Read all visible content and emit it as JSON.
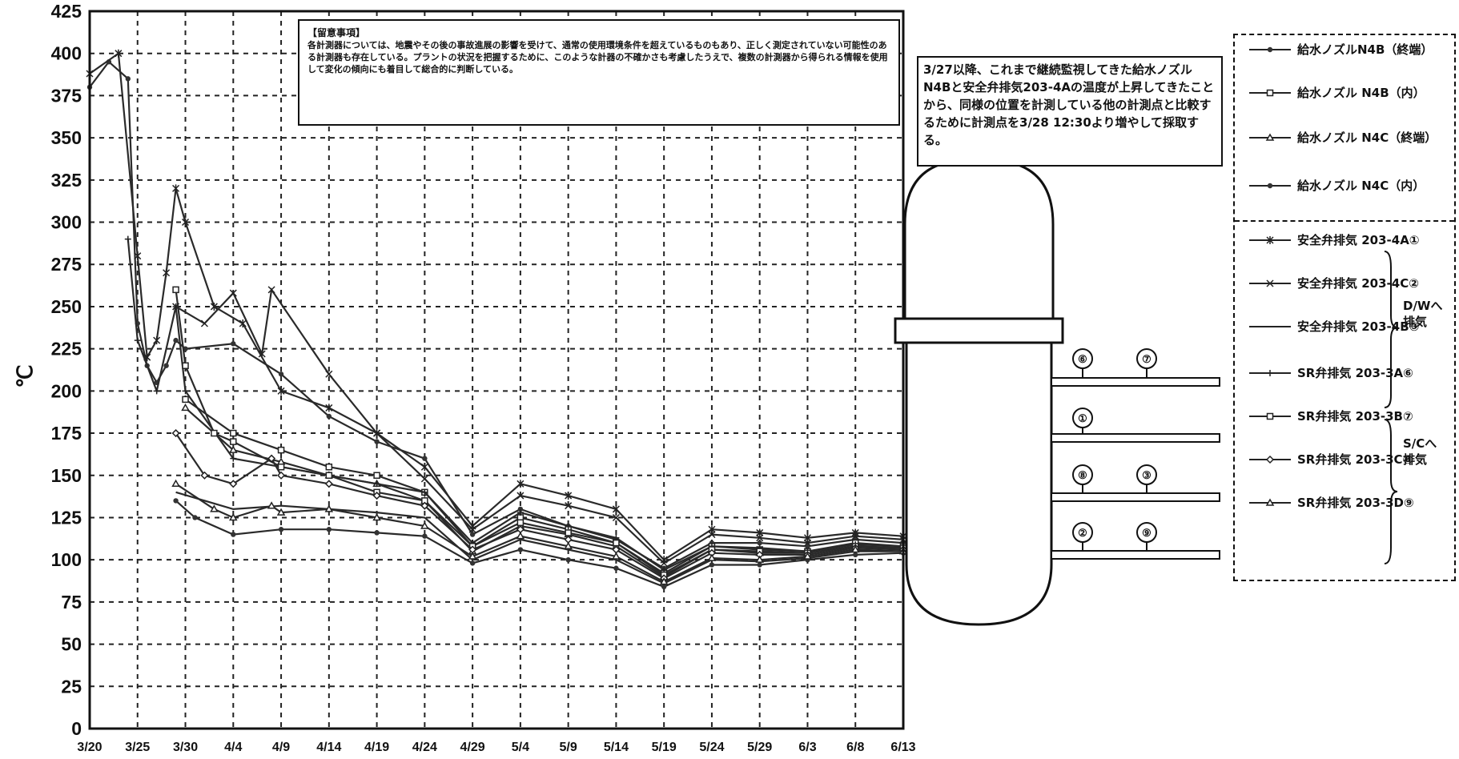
{
  "chart_data": {
    "type": "line",
    "ylabel": "℃",
    "ylim": [
      0,
      425
    ],
    "yticks": [
      "0",
      "25",
      "50",
      "75",
      "100",
      "125",
      "150",
      "175",
      "200",
      "225",
      "250",
      "275",
      "300",
      "325",
      "350",
      "375",
      "400",
      "425"
    ],
    "xticks": [
      "3/20",
      "3/25",
      "3/30",
      "4/4",
      "4/9",
      "4/14",
      "4/19",
      "4/24",
      "4/29",
      "5/4",
      "5/9",
      "5/14",
      "5/19",
      "5/24",
      "5/29",
      "6/3",
      "6/8",
      "6/13"
    ],
    "x_start_month": 3,
    "x_start_day": 20,
    "grid": true,
    "note": {
      "title": "【留意事項】",
      "body": "各計測器については、地震やその後の事故進展の影響を受けて、通常の使用環境条件を超えているものもあり、正しく測定されていない可能性のある計測器も存在している。プラントの状況を把握するために、このような計器の不確かさも考慮したうえで、複数の計測器から得られる情報を使用して変化の傾向にも着目して総合的に判断している。"
    },
    "callout": "3/27以降、これまで継続監視してきた給水ノズルN4Bと安全弁排気203-4Aの温度が上昇してきたことから、同様の位置を計測している他の計測点と比較するために計測点を3/28 12:30より増やして採取する。",
    "series": [
      {
        "name": "給水ノズルN4B（終端）",
        "marker": "dot",
        "points": [
          [
            3,
            20,
            380
          ],
          [
            3,
            22,
            395
          ],
          [
            3,
            24,
            385
          ],
          [
            3,
            25,
            240
          ],
          [
            3,
            26,
            215
          ],
          [
            3,
            27,
            205
          ],
          [
            3,
            28,
            215
          ],
          [
            3,
            29,
            230
          ],
          [
            3,
            30,
            225
          ],
          [
            4,
            4,
            228
          ],
          [
            4,
            9,
            210
          ],
          [
            4,
            14,
            185
          ],
          [
            4,
            19,
            170
          ],
          [
            4,
            24,
            160
          ],
          [
            4,
            29,
            115
          ],
          [
            5,
            4,
            130
          ],
          [
            5,
            9,
            120
          ],
          [
            5,
            14,
            112
          ],
          [
            5,
            19,
            95
          ],
          [
            5,
            24,
            110
          ],
          [
            5,
            29,
            110
          ],
          [
            6,
            3,
            108
          ],
          [
            6,
            8,
            112
          ],
          [
            6,
            13,
            110
          ]
        ]
      },
      {
        "name": "給水ノズル N4B（内）",
        "marker": "square",
        "points": [
          [
            3,
            30,
            195
          ],
          [
            4,
            4,
            175
          ],
          [
            4,
            9,
            165
          ],
          [
            4,
            14,
            155
          ],
          [
            4,
            19,
            150
          ],
          [
            4,
            24,
            140
          ],
          [
            4,
            29,
            108
          ],
          [
            5,
            4,
            125
          ],
          [
            5,
            9,
            118
          ],
          [
            5,
            14,
            110
          ],
          [
            5,
            19,
            92
          ],
          [
            5,
            24,
            108
          ],
          [
            5,
            29,
            106
          ],
          [
            6,
            3,
            105
          ],
          [
            6,
            8,
            110
          ],
          [
            6,
            13,
            108
          ]
        ]
      },
      {
        "name": "給水ノズル N4C（終端）",
        "marker": "triangle",
        "points": [
          [
            3,
            30,
            190
          ],
          [
            4,
            4,
            165
          ],
          [
            4,
            9,
            158
          ],
          [
            4,
            14,
            150
          ],
          [
            4,
            19,
            145
          ],
          [
            4,
            24,
            135
          ],
          [
            4,
            29,
            105
          ],
          [
            5,
            4,
            120
          ],
          [
            5,
            9,
            115
          ],
          [
            5,
            14,
            108
          ],
          [
            5,
            19,
            90
          ],
          [
            5,
            24,
            106
          ],
          [
            5,
            29,
            104
          ],
          [
            6,
            3,
            104
          ],
          [
            6,
            8,
            108
          ],
          [
            6,
            13,
            107
          ]
        ]
      },
      {
        "name": "給水ノズル N4C（内）",
        "marker": "dot",
        "points": [
          [
            3,
            29,
            135
          ],
          [
            3,
            31,
            125
          ],
          [
            4,
            4,
            115
          ],
          [
            4,
            9,
            118
          ],
          [
            4,
            14,
            118
          ],
          [
            4,
            19,
            116
          ],
          [
            4,
            24,
            114
          ],
          [
            4,
            29,
            98
          ],
          [
            5,
            4,
            106
          ],
          [
            5,
            9,
            100
          ],
          [
            5,
            14,
            95
          ],
          [
            5,
            19,
            84
          ],
          [
            5,
            24,
            97
          ],
          [
            5,
            29,
            97
          ],
          [
            6,
            3,
            100
          ],
          [
            6,
            8,
            103
          ],
          [
            6,
            13,
            104
          ]
        ]
      },
      {
        "name": "安全弁排気 203-4A①",
        "marker": "asterisk",
        "points": [
          [
            3,
            20,
            388
          ],
          [
            3,
            23,
            400
          ],
          [
            3,
            25,
            280
          ],
          [
            3,
            26,
            220
          ],
          [
            3,
            27,
            230
          ],
          [
            3,
            28,
            270
          ],
          [
            3,
            29,
            320
          ],
          [
            3,
            30,
            300
          ],
          [
            4,
            2,
            250
          ],
          [
            4,
            5,
            240
          ],
          [
            4,
            9,
            200
          ],
          [
            4,
            14,
            190
          ],
          [
            4,
            19,
            175
          ],
          [
            4,
            24,
            155
          ],
          [
            4,
            29,
            120
          ],
          [
            5,
            4,
            145
          ],
          [
            5,
            9,
            138
          ],
          [
            5,
            14,
            130
          ],
          [
            5,
            19,
            100
          ],
          [
            5,
            24,
            118
          ],
          [
            5,
            29,
            116
          ],
          [
            6,
            3,
            113
          ],
          [
            6,
            8,
            116
          ],
          [
            6,
            13,
            114
          ]
        ]
      },
      {
        "name": "安全弁排気 203-4C②",
        "marker": "x",
        "points": [
          [
            3,
            29,
            250
          ],
          [
            4,
            1,
            240
          ],
          [
            4,
            4,
            258
          ],
          [
            4,
            7,
            222
          ],
          [
            4,
            8,
            260
          ],
          [
            4,
            14,
            210
          ],
          [
            4,
            19,
            175
          ],
          [
            4,
            24,
            148
          ],
          [
            4,
            29,
            118
          ],
          [
            5,
            4,
            138
          ],
          [
            5,
            9,
            132
          ],
          [
            5,
            14,
            125
          ],
          [
            5,
            19,
            98
          ],
          [
            5,
            24,
            115
          ],
          [
            5,
            29,
            113
          ],
          [
            6,
            3,
            110
          ],
          [
            6,
            8,
            114
          ],
          [
            6,
            13,
            112
          ]
        ]
      },
      {
        "name": "安全弁排気 203-4B③",
        "marker": "none",
        "points": [
          [
            3,
            29,
            140
          ],
          [
            4,
            4,
            130
          ],
          [
            4,
            9,
            132
          ],
          [
            4,
            14,
            130
          ],
          [
            4,
            19,
            128
          ],
          [
            4,
            24,
            125
          ],
          [
            4,
            29,
            100
          ],
          [
            5,
            4,
            112
          ],
          [
            5,
            9,
            106
          ],
          [
            5,
            14,
            100
          ],
          [
            5,
            19,
            86
          ],
          [
            5,
            24,
            100
          ],
          [
            5,
            29,
            99
          ],
          [
            6,
            3,
            101
          ],
          [
            6,
            8,
            105
          ],
          [
            6,
            13,
            105
          ]
        ]
      },
      {
        "name": "SR弁排気 203-3A⑥",
        "marker": "plus",
        "points": [
          [
            3,
            24,
            290
          ],
          [
            3,
            25,
            230
          ],
          [
            3,
            27,
            200
          ],
          [
            3,
            29,
            250
          ],
          [
            3,
            30,
            200
          ],
          [
            4,
            4,
            160
          ],
          [
            4,
            9,
            155
          ],
          [
            4,
            14,
            150
          ],
          [
            4,
            19,
            145
          ],
          [
            4,
            24,
            140
          ],
          [
            4,
            29,
            110
          ],
          [
            5,
            4,
            128
          ],
          [
            5,
            9,
            120
          ],
          [
            5,
            14,
            113
          ],
          [
            5,
            19,
            94
          ],
          [
            5,
            24,
            108
          ],
          [
            5,
            29,
            107
          ],
          [
            6,
            3,
            105
          ],
          [
            6,
            8,
            109
          ],
          [
            6,
            13,
            108
          ]
        ]
      },
      {
        "name": "SR弁排気 203-3B⑦",
        "marker": "square",
        "points": [
          [
            3,
            29,
            260
          ],
          [
            3,
            30,
            215
          ],
          [
            4,
            2,
            175
          ],
          [
            4,
            4,
            170
          ],
          [
            4,
            9,
            155
          ],
          [
            4,
            14,
            150
          ],
          [
            4,
            19,
            140
          ],
          [
            4,
            24,
            135
          ],
          [
            4,
            29,
            108
          ],
          [
            5,
            4,
            122
          ],
          [
            5,
            9,
            116
          ],
          [
            5,
            14,
            110
          ],
          [
            5,
            19,
            91
          ],
          [
            5,
            24,
            106
          ],
          [
            5,
            29,
            105
          ],
          [
            6,
            3,
            104
          ],
          [
            6,
            8,
            108
          ],
          [
            6,
            13,
            107
          ]
        ]
      },
      {
        "name": "SR弁排気 203-3C⑧",
        "marker": "diamond",
        "points": [
          [
            3,
            29,
            175
          ],
          [
            4,
            1,
            150
          ],
          [
            4,
            4,
            145
          ],
          [
            4,
            8,
            160
          ],
          [
            4,
            9,
            150
          ],
          [
            4,
            14,
            145
          ],
          [
            4,
            19,
            138
          ],
          [
            4,
            24,
            132
          ],
          [
            4,
            29,
            106
          ],
          [
            5,
            4,
            118
          ],
          [
            5,
            9,
            112
          ],
          [
            5,
            14,
            106
          ],
          [
            5,
            19,
            89
          ],
          [
            5,
            24,
            104
          ],
          [
            5,
            29,
            103
          ],
          [
            6,
            3,
            103
          ],
          [
            6,
            8,
            107
          ],
          [
            6,
            13,
            106
          ]
        ]
      },
      {
        "name": "SR弁排気 203-3D⑨",
        "marker": "triangle",
        "points": [
          [
            3,
            29,
            145
          ],
          [
            4,
            2,
            130
          ],
          [
            4,
            4,
            125
          ],
          [
            4,
            8,
            132
          ],
          [
            4,
            9,
            128
          ],
          [
            4,
            14,
            130
          ],
          [
            4,
            19,
            125
          ],
          [
            4,
            24,
            120
          ],
          [
            4,
            29,
            102
          ],
          [
            5,
            4,
            114
          ],
          [
            5,
            9,
            108
          ],
          [
            5,
            14,
            102
          ],
          [
            5,
            19,
            87
          ],
          [
            5,
            24,
            101
          ],
          [
            5,
            29,
            100
          ],
          [
            6,
            3,
            102
          ],
          [
            6,
            8,
            106
          ],
          [
            6,
            13,
            105
          ]
        ]
      }
    ],
    "legend_groups": [
      {
        "label": "D/Wへ 排気",
        "items": [
          4,
          5,
          6
        ]
      },
      {
        "label": "S/Cへ 排気",
        "items": [
          7,
          8,
          9,
          10
        ]
      }
    ],
    "diagram_tags": [
      "⑥",
      "⑦",
      "①",
      "⑧",
      "③",
      "②",
      "⑨"
    ]
  }
}
